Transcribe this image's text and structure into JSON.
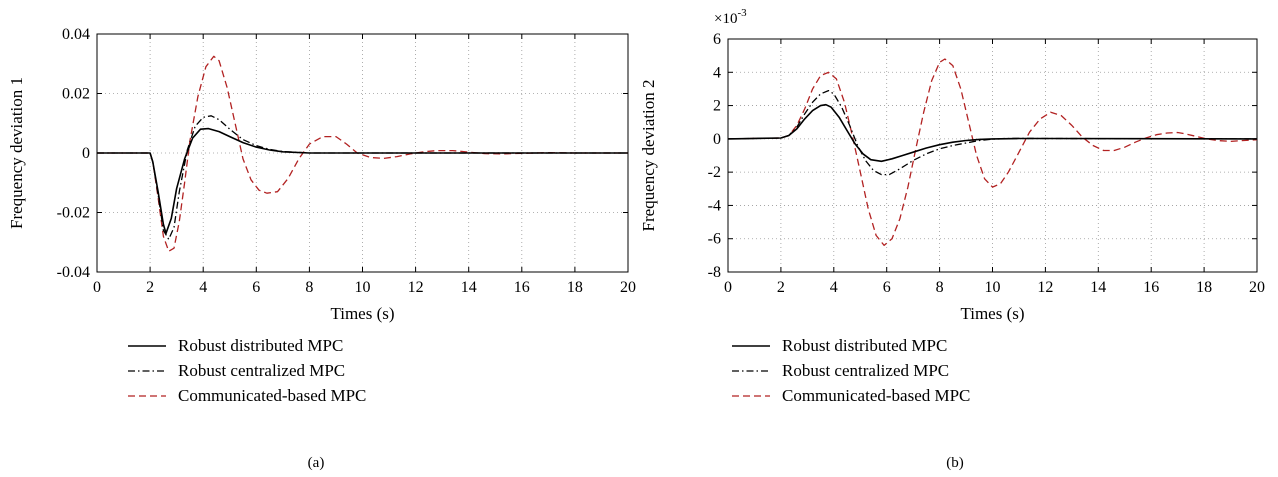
{
  "colors": {
    "distributed": "#000000",
    "centralized": "#000000",
    "communicated": "#b22222",
    "grid": "#9a9a9a"
  },
  "legend": [
    {
      "label": "Robust distributed MPC",
      "style": "solid"
    },
    {
      "label": "Robust centralized MPC",
      "style": "dashdot"
    },
    {
      "label": "Communicated-based MPC",
      "style": "dashed"
    }
  ],
  "chart_data": [
    {
      "type": "line",
      "caption": "(a)",
      "xlabel": "Times (s)",
      "ylabel": "Frequency deviation 1",
      "xlim": [
        0,
        20
      ],
      "ylim": [
        -0.04,
        0.04
      ],
      "xticks": [
        0,
        2,
        4,
        6,
        8,
        10,
        12,
        14,
        16,
        18,
        20
      ],
      "yticks": [
        -0.04,
        -0.02,
        0,
        0.02,
        0.04
      ],
      "ytick_labels": [
        "-0.04",
        "-0.02",
        "0",
        "0.02",
        "0.04"
      ],
      "exponent_label": "",
      "grid": true,
      "series": [
        {
          "name": "Robust distributed MPC",
          "style": "solid",
          "x": [
            0,
            2,
            2.1,
            2.3,
            2.5,
            2.6,
            2.8,
            3.0,
            3.3,
            3.6,
            3.9,
            4.2,
            4.6,
            5.0,
            5.5,
            6.0,
            6.5,
            7,
            8,
            9,
            10,
            20
          ],
          "y": [
            0,
            0,
            -0.003,
            -0.013,
            -0.024,
            -0.027,
            -0.022,
            -0.012,
            -0.002,
            0.005,
            0.008,
            0.0082,
            0.0072,
            0.0055,
            0.0035,
            0.002,
            0.001,
            0.0004,
            0,
            0,
            0,
            0
          ]
        },
        {
          "name": "Robust centralized MPC",
          "style": "dashdot",
          "x": [
            0,
            2,
            2.1,
            2.3,
            2.5,
            2.7,
            2.9,
            3.1,
            3.4,
            3.7,
            4.0,
            4.3,
            4.6,
            5.0,
            5.5,
            6.0,
            6.5,
            7,
            8,
            9,
            10,
            20
          ],
          "y": [
            0,
            0,
            -0.003,
            -0.014,
            -0.026,
            -0.029,
            -0.025,
            -0.013,
            0.001,
            0.009,
            0.012,
            0.0125,
            0.0112,
            0.008,
            0.0045,
            0.0025,
            0.0012,
            0.0005,
            0,
            0,
            0,
            0
          ]
        },
        {
          "name": "Communicated-based MPC",
          "style": "dashed",
          "x": [
            0,
            2,
            2.1,
            2.3,
            2.5,
            2.7,
            2.9,
            3.1,
            3.3,
            3.5,
            3.8,
            4.1,
            4.4,
            4.6,
            4.9,
            5.2,
            5.5,
            5.8,
            6.1,
            6.4,
            6.8,
            7.2,
            7.6,
            8.0,
            8.5,
            9.0,
            9.4,
            9.8,
            10.3,
            10.8,
            11.3,
            11.8,
            12.3,
            12.8,
            13.4,
            14.0,
            14.6,
            15.2,
            16,
            17,
            18,
            20
          ],
          "y": [
            0,
            0,
            -0.003,
            -0.015,
            -0.028,
            -0.033,
            -0.032,
            -0.023,
            -0.01,
            0.004,
            0.019,
            0.029,
            0.0325,
            0.031,
            0.022,
            0.01,
            -0.002,
            -0.009,
            -0.0125,
            -0.0135,
            -0.013,
            -0.0085,
            -0.002,
            0.003,
            0.0055,
            0.0055,
            0.003,
            0.0,
            -0.0015,
            -0.0018,
            -0.0012,
            -0.0003,
            0.0004,
            0.0008,
            0.0008,
            0.0003,
            -0.0002,
            -0.0003,
            -0.0001,
            0.0001,
            0,
            0
          ]
        }
      ]
    },
    {
      "type": "line",
      "caption": "(b)",
      "xlabel": "Times (s)",
      "ylabel": "Frequency deviation 2",
      "xlim": [
        0,
        20
      ],
      "ylim": [
        -8,
        6
      ],
      "xticks": [
        0,
        2,
        4,
        6,
        8,
        10,
        12,
        14,
        16,
        18,
        20
      ],
      "yticks": [
        -8,
        -6,
        -4,
        -2,
        0,
        2,
        4,
        6
      ],
      "ytick_labels": [
        "-8",
        "-6",
        "-4",
        "-2",
        "0",
        "2",
        "4",
        "6"
      ],
      "exponent_label": "×10",
      "exponent_power": "-3",
      "grid": true,
      "series": [
        {
          "name": "Robust distributed MPC",
          "style": "solid",
          "x": [
            0,
            2,
            2.3,
            2.6,
            2.9,
            3.2,
            3.5,
            3.7,
            3.9,
            4.2,
            4.5,
            4.8,
            5.1,
            5.4,
            5.8,
            6.2,
            6.6,
            7.0,
            7.5,
            8.0,
            8.5,
            9.0,
            9.5,
            10,
            11,
            12,
            20
          ],
          "y": [
            0,
            0.05,
            0.2,
            0.6,
            1.2,
            1.7,
            2.0,
            2.05,
            1.9,
            1.3,
            0.5,
            -0.3,
            -0.9,
            -1.25,
            -1.35,
            -1.2,
            -1.0,
            -0.8,
            -0.55,
            -0.35,
            -0.2,
            -0.1,
            -0.03,
            0,
            0.02,
            0.02,
            0
          ]
        },
        {
          "name": "Robust centralized MPC",
          "style": "dashdot",
          "x": [
            0,
            2,
            2.3,
            2.6,
            2.9,
            3.2,
            3.5,
            3.8,
            4.0,
            4.3,
            4.6,
            4.9,
            5.2,
            5.5,
            5.8,
            6.1,
            6.5,
            7.0,
            7.5,
            8.0,
            8.5,
            9.0,
            9.5,
            10,
            10.5,
            11,
            12,
            20
          ],
          "y": [
            0,
            0.05,
            0.2,
            0.7,
            1.5,
            2.2,
            2.7,
            2.9,
            2.7,
            1.9,
            0.8,
            -0.4,
            -1.3,
            -1.9,
            -2.15,
            -2.15,
            -1.8,
            -1.3,
            -0.9,
            -0.6,
            -0.4,
            -0.25,
            -0.1,
            -0.02,
            0.02,
            0.03,
            0.02,
            0
          ]
        },
        {
          "name": "Communicated-based MPC",
          "style": "dashed",
          "x": [
            0,
            2,
            2.3,
            2.6,
            2.9,
            3.2,
            3.5,
            3.8,
            4.1,
            4.4,
            4.7,
            5.0,
            5.3,
            5.6,
            5.9,
            6.2,
            6.5,
            6.8,
            7.1,
            7.4,
            7.7,
            8.0,
            8.2,
            8.5,
            8.8,
            9.1,
            9.4,
            9.7,
            10.0,
            10.3,
            10.6,
            11.0,
            11.4,
            11.8,
            12.2,
            12.6,
            13.0,
            13.4,
            13.8,
            14.2,
            14.6,
            15.0,
            15.4,
            15.8,
            16.2,
            16.6,
            17.0,
            17.3,
            17.7,
            18.1,
            18.5,
            19.0,
            19.5,
            20
          ],
          "y": [
            0,
            0.05,
            0.2,
            0.8,
            1.8,
            3.0,
            3.8,
            4.0,
            3.6,
            2.2,
            0.2,
            -2.0,
            -4.2,
            -5.8,
            -6.4,
            -6.0,
            -4.8,
            -2.9,
            -0.6,
            1.6,
            3.5,
            4.6,
            4.8,
            4.4,
            3.0,
            1.0,
            -1.0,
            -2.4,
            -2.9,
            -2.7,
            -2.0,
            -0.8,
            0.4,
            1.2,
            1.6,
            1.4,
            0.8,
            0.1,
            -0.4,
            -0.7,
            -0.7,
            -0.5,
            -0.2,
            0.05,
            0.25,
            0.35,
            0.38,
            0.3,
            0.15,
            0.0,
            -0.1,
            -0.15,
            -0.1,
            -0.05
          ]
        }
      ]
    }
  ]
}
